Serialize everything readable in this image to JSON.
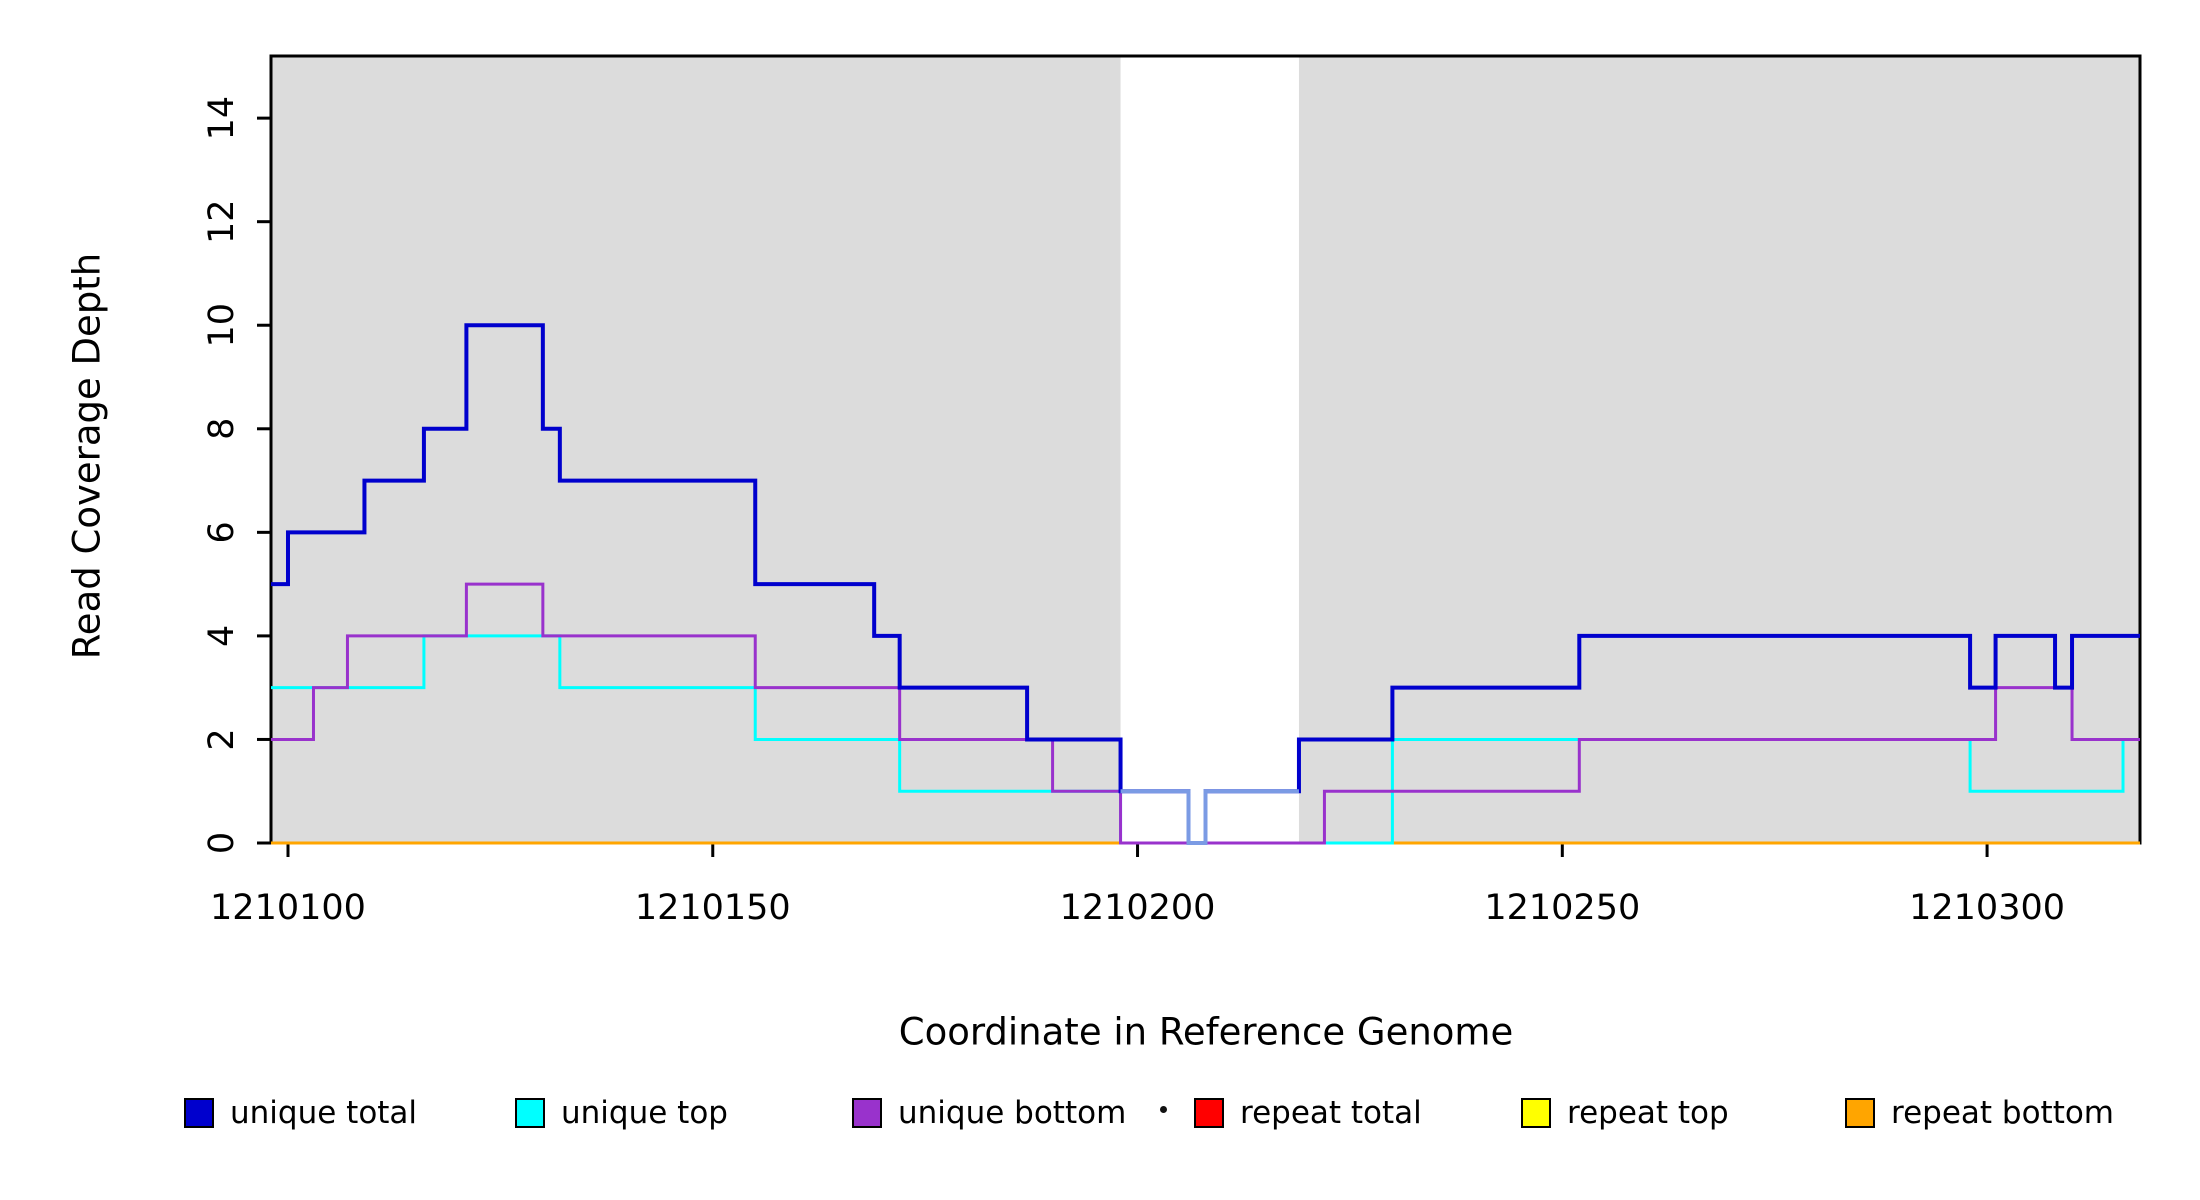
{
  "chart_data": {
    "type": "line",
    "subtype": "step-coverage",
    "title": "",
    "xlabel": "Coordinate in Reference Genome",
    "ylabel": "Read Coverage Depth",
    "xlim": [
      1210098,
      1210318
    ],
    "ylim": [
      0,
      15.2
    ],
    "xticks": [
      1210100,
      1210150,
      1210200,
      1210250,
      1210300
    ],
    "yticks": [
      0,
      2,
      4,
      6,
      8,
      10,
      12,
      14
    ],
    "grid": false,
    "plot_background": "#dcdcdc",
    "gap_band": {
      "from": 1210198,
      "to": 1210219,
      "color": "#ffffff"
    },
    "legend_position": "bottom",
    "draw_order": [
      3,
      4,
      5,
      1,
      2,
      0,
      6
    ],
    "series": [
      {
        "name": "unique total",
        "color": "#0000cd",
        "lw": 4,
        "in_legend": true,
        "steps": [
          [
            1210098,
            5
          ],
          [
            1210100,
            6
          ],
          [
            1210109,
            7
          ],
          [
            1210116,
            8
          ],
          [
            1210121,
            10
          ],
          [
            1210130,
            8
          ],
          [
            1210132,
            7
          ],
          [
            1210155,
            5
          ],
          [
            1210169,
            4
          ],
          [
            1210172,
            3
          ],
          [
            1210187,
            2
          ],
          [
            1210198,
            1
          ],
          [
            1210206,
            0
          ],
          [
            1210208,
            1
          ],
          [
            1210219,
            2
          ],
          [
            1210230,
            3
          ],
          [
            1210252,
            4
          ],
          [
            1210298,
            3
          ],
          [
            1210301,
            4
          ],
          [
            1210308,
            3
          ],
          [
            1210310,
            4
          ]
        ]
      },
      {
        "name": "unique top",
        "color": "#00ffff",
        "lw": 3,
        "in_legend": true,
        "steps": [
          [
            1210098,
            3
          ],
          [
            1210116,
            4
          ],
          [
            1210132,
            3
          ],
          [
            1210155,
            2
          ],
          [
            1210172,
            1
          ],
          [
            1210198,
            0
          ],
          [
            1210230,
            2
          ],
          [
            1210298,
            1
          ],
          [
            1210316,
            2
          ]
        ]
      },
      {
        "name": "unique bottom",
        "color": "#9932cc",
        "lw": 3,
        "in_legend": true,
        "steps": [
          [
            1210098,
            2
          ],
          [
            1210103,
            3
          ],
          [
            1210107,
            4
          ],
          [
            1210121,
            5
          ],
          [
            1210130,
            4
          ],
          [
            1210155,
            3
          ],
          [
            1210172,
            2
          ],
          [
            1210190,
            1
          ],
          [
            1210198,
            0
          ],
          [
            1210222,
            1
          ],
          [
            1210252,
            2
          ],
          [
            1210301,
            3
          ],
          [
            1210310,
            2
          ]
        ]
      },
      {
        "name": "repeat total",
        "color": "#ff0000",
        "lw": 3,
        "in_legend": true,
        "steps": [
          [
            1210098,
            0
          ]
        ]
      },
      {
        "name": "repeat top",
        "color": "#ffff00",
        "lw": 3,
        "in_legend": true,
        "steps": [
          [
            1210098,
            0
          ]
        ]
      },
      {
        "name": "repeat bottom",
        "color": "#ffa500",
        "lw": 3,
        "in_legend": true,
        "steps": [
          [
            1210098,
            0
          ]
        ]
      },
      {
        "name": "unique total gap segment",
        "color": "#7b9be4",
        "lw": 4,
        "in_legend": false,
        "xend": 1210219,
        "steps": [
          [
            1210198,
            1
          ],
          [
            1210206,
            0
          ],
          [
            1210208,
            1
          ]
        ]
      }
    ],
    "legend": [
      {
        "label": "unique total",
        "color": "#0000cd"
      },
      {
        "label": "unique top",
        "color": "#00ffff"
      },
      {
        "label": "unique bottom",
        "color": "#9932cc"
      },
      {
        "label": "repeat total",
        "color": "#ff0000"
      },
      {
        "label": "repeat top",
        "color": "#ffff00"
      },
      {
        "label": "repeat bottom",
        "color": "#ffa500"
      }
    ]
  }
}
